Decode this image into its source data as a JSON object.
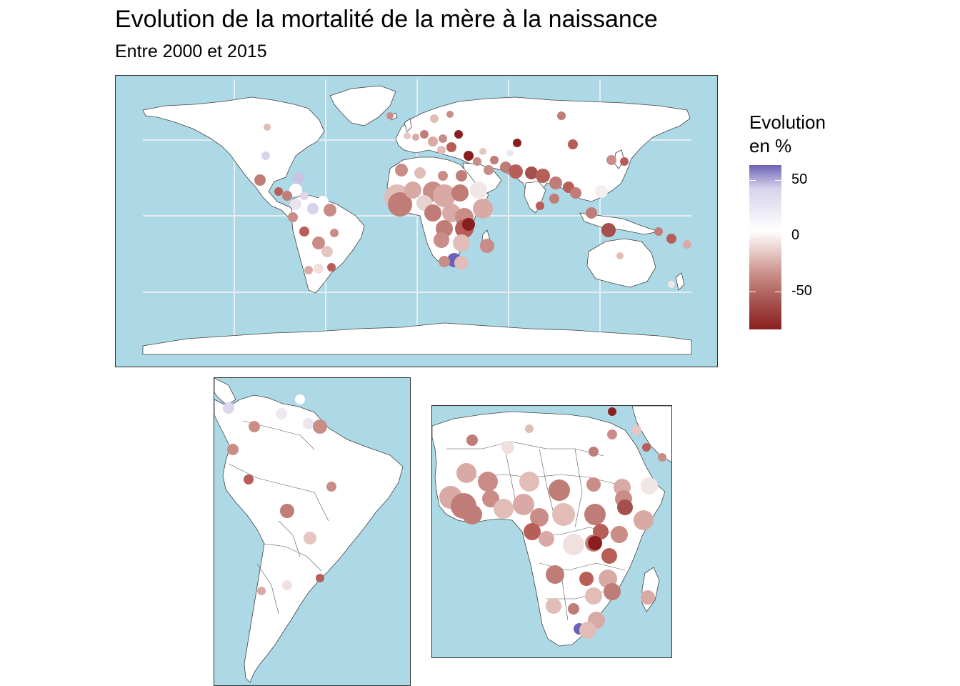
{
  "title": "Evolution de la mortalité de la mère à la naissance",
  "subtitle": "Entre 2000 et 2015",
  "legend": {
    "title_line1": "Evolution",
    "title_line2": "en %",
    "ticks": [
      "50",
      "0",
      "-50"
    ]
  },
  "colors": {
    "ocean": "#add8e6",
    "land": "#ffffff",
    "positive": "#6b62b7",
    "zero": "#ffffff",
    "negative": "#8a1f1f"
  },
  "panels": [
    "world",
    "south-america",
    "africa"
  ]
}
